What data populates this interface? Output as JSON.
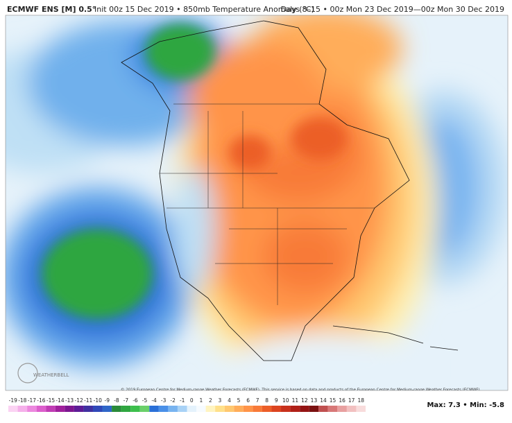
{
  "header": {
    "model": "ECMWF ENS [M] 0.5°",
    "description": "Init 00z 15 Dec 2019 • 850mb Temperature Anomaly (°C)",
    "valid": "Days 8–15 • 00z Mon 23 Dec 2019—00z Mon 30 Dec 2019"
  },
  "map": {
    "credit": "© 2019 European Centre for Medium-range Weather Forecasts (ECMWF). This service is based on data and products of the European Centre for Medium-range Weather Forecasts (ECMWF).",
    "logo": "WEATHERBELL"
  },
  "colorbar": {
    "labels": [
      -19,
      -18,
      -17,
      -16,
      -15,
      -14,
      -13,
      -12,
      -11,
      -10,
      -9,
      -8,
      -7,
      -6,
      -5,
      -4,
      -3,
      -2,
      -1,
      0,
      1,
      2,
      3,
      4,
      5,
      6,
      7,
      8,
      9,
      10,
      11,
      12,
      13,
      14,
      15,
      16,
      17,
      18
    ],
    "colors": [
      "#fbd3f3",
      "#f5b0ea",
      "#ec88de",
      "#dc5fcc",
      "#c03cb4",
      "#a0209c",
      "#7d1690",
      "#5e1c96",
      "#4030a0",
      "#3048b8",
      "#2f66c8",
      "#2a8a3a",
      "#2fa640",
      "#3cbf4c",
      "#6ad06a",
      "#2a70d8",
      "#4a90e8",
      "#78b4f0",
      "#a8d2f6",
      "#e4f2fc",
      "#f6fbff",
      "#fff4c0",
      "#ffe08a",
      "#ffc870",
      "#ffad5a",
      "#ff9448",
      "#f87a38",
      "#ec5e28",
      "#dc4420",
      "#c8301c",
      "#b02018",
      "#941414",
      "#7a1010",
      "#c05050",
      "#d87878",
      "#e8a0a0",
      "#f2c0c0",
      "#f8dcdc"
    ]
  },
  "footer": {
    "stats": "Max: 7.3 • Min: -5.8"
  }
}
